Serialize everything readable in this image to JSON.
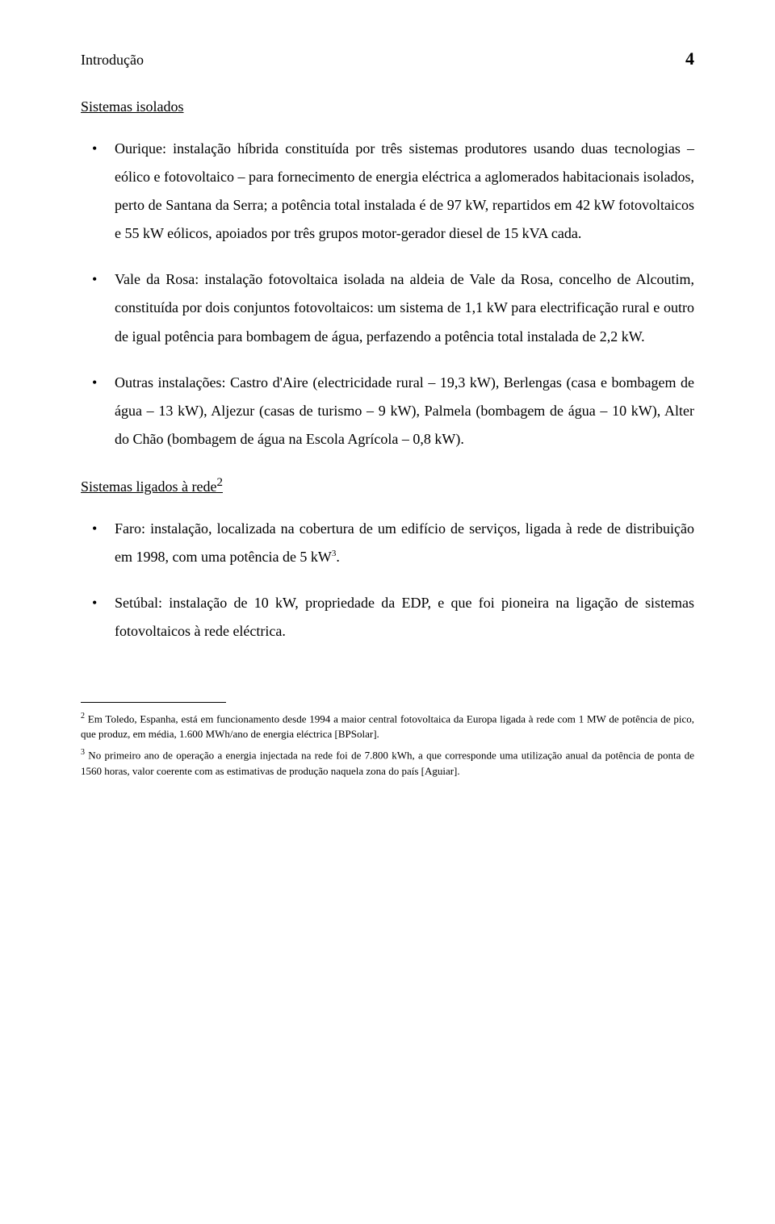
{
  "header": {
    "title": "Introdução",
    "page_number": "4"
  },
  "sections": {
    "isolated_systems": {
      "heading": "Sistemas isolados",
      "items": [
        "Ourique: instalação híbrida constituída por três sistemas produtores usando duas tecnologias – eólico e fotovoltaico – para fornecimento de energia eléctrica a aglomerados habitacionais isolados, perto de Santana da Serra; a potência total instalada é de 97 kW, repartidos em 42 kW fotovoltaicos e 55 kW eólicos, apoiados por três grupos motor-gerador diesel de 15 kVA cada.",
        "Vale da Rosa: instalação fotovoltaica isolada na aldeia de Vale da Rosa, concelho de Alcoutim, constituída por dois conjuntos fotovoltaicos: um sistema de 1,1 kW para electrificação rural e outro de igual potência para bombagem de água, perfazendo a potência total instalada de 2,2 kW.",
        "Outras instalações: Castro d'Aire (electricidade rural – 19,3 kW), Berlengas (casa e bombagem de água – 13 kW), Aljezur (casas de turismo – 9 kW), Palmela (bombagem de água – 10 kW), Alter do Chão (bombagem de água na Escola Agrícola – 0,8 kW)."
      ]
    },
    "grid_connected": {
      "heading_prefix": "Sistemas ligados à rede",
      "heading_sup": "2",
      "items": [
        {
          "text_prefix": "Faro: instalação, localizada na cobertura de um edifício de serviços, ligada à rede de distribuição em 1998, com uma potência de 5 kW",
          "sup": "3",
          "text_suffix": "."
        },
        {
          "text_prefix": "Setúbal: instalação de 10 kW, propriedade da EDP, e que foi pioneira na ligação de sistemas fotovoltaicos à rede eléctrica.",
          "sup": "",
          "text_suffix": ""
        }
      ]
    }
  },
  "footnotes": {
    "note2": {
      "num": "2",
      "text": " Em Toledo, Espanha, está em funcionamento desde 1994 a maior central fotovoltaica da Europa ligada à rede com 1 MW de potência de pico, que produz, em média, 1.600 MWh/ano de energia eléctrica [BPSolar]."
    },
    "note3": {
      "num": "3",
      "text": " No primeiro ano de operação a energia injectada na rede foi de 7.800 kWh, a que corresponde uma utilização anual da potência de ponta de 1560 horas, valor coerente com as estimativas de produção naquela zona do país [Aguiar]."
    }
  },
  "styling": {
    "body_font_size": 18,
    "body_line_height": 1.95,
    "footnote_font_size": 13,
    "background_color": "#ffffff",
    "text_color": "#000000"
  }
}
